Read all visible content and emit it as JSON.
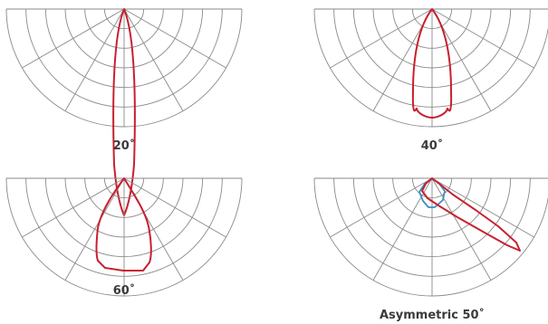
{
  "colors": {
    "primary_beam": "#c8202f",
    "secondary_beam": "#3a8fc8",
    "grid": "#8a8a8a",
    "label": "#3a3a3a"
  },
  "diagrams": [
    {
      "label": "20˚"
    },
    {
      "label": "40˚"
    },
    {
      "label": "60˚"
    },
    {
      "label": "Asymmetric 50˚"
    }
  ]
}
